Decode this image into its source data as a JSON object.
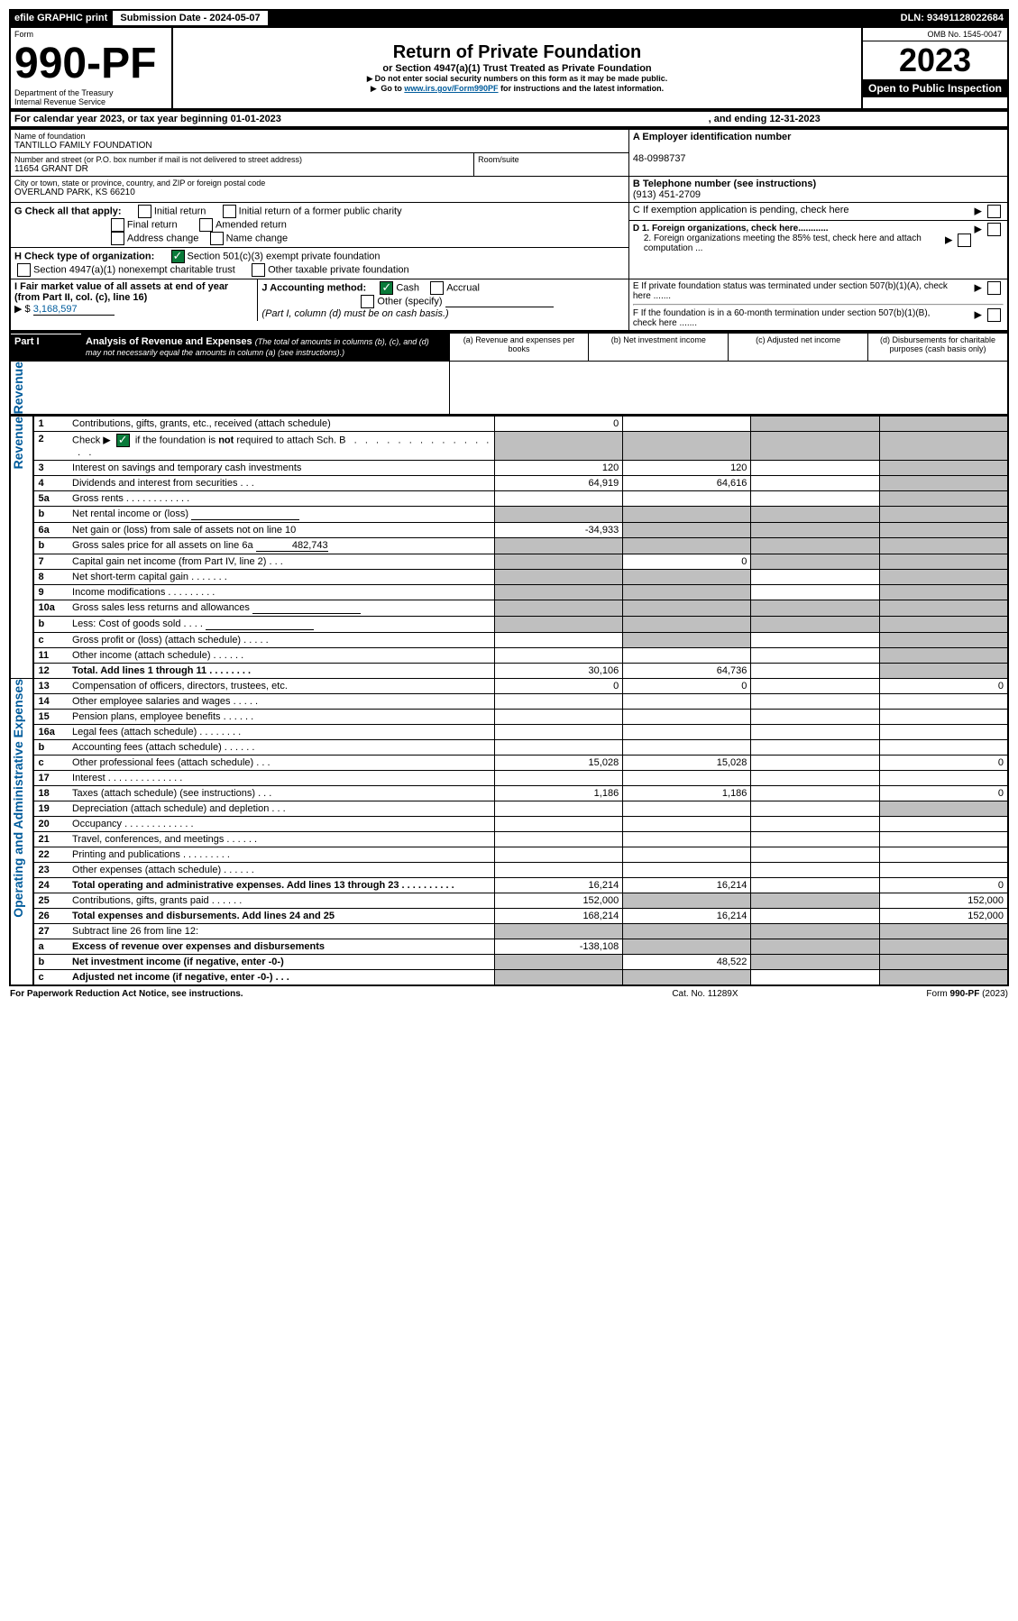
{
  "topbar": {
    "efile": "efile GRAPHIC print",
    "submission_label": "Submission Date - 2024-05-07",
    "dln": "DLN: 93491128022684"
  },
  "header": {
    "form_label": "Form",
    "form_no": "990-PF",
    "dept": "Department of the Treasury",
    "irs": "Internal Revenue Service",
    "title": "Return of Private Foundation",
    "subtitle": "or Section 4947(a)(1) Trust Treated as Private Foundation",
    "note1": "Do not enter social security numbers on this form as it may be made public.",
    "note2_prefix": "Go to ",
    "note2_link": "www.irs.gov/Form990PF",
    "note2_suffix": " for instructions and the latest information.",
    "omb": "OMB No. 1545-0047",
    "year": "2023",
    "open": "Open to Public Inspection"
  },
  "cal": {
    "line": "For calendar year 2023, or tax year beginning 01-01-2023",
    "ending": ", and ending 12-31-2023"
  },
  "id_block": {
    "name_lbl": "Name of foundation",
    "name": "TANTILLO FAMILY FOUNDATION",
    "addr_lbl": "Number and street (or P.O. box number if mail is not delivered to street address)",
    "addr": "11654 GRANT DR",
    "room_lbl": "Room/suite",
    "city_lbl": "City or town, state or province, country, and ZIP or foreign postal code",
    "city": "OVERLAND PARK, KS  66210",
    "a_lbl": "A Employer identification number",
    "a_val": "48-0998737",
    "b_lbl": "B Telephone number (see instructions)",
    "b_val": "(913) 451-2709",
    "c_lbl": "C If exemption application is pending, check here",
    "d1_lbl": "D 1. Foreign organizations, check here............",
    "d2_lbl": "2. Foreign organizations meeting the 85% test, check here and attach computation ...",
    "e_lbl": "E  If private foundation status was terminated under section 507(b)(1)(A), check here .......",
    "f_lbl": "F  If the foundation is in a 60-month termination under section 507(b)(1)(B), check here .......",
    "g_lbl": "G Check all that apply:",
    "g_opts": [
      "Initial return",
      "Final return",
      "Address change",
      "Initial return of a former public charity",
      "Amended return",
      "Name change"
    ],
    "h_lbl": "H Check type of organization:",
    "h_opt1": "Section 501(c)(3) exempt private foundation",
    "h_opt2": "Section 4947(a)(1) nonexempt charitable trust",
    "h_opt3": "Other taxable private foundation",
    "i_lbl": "I Fair market value of all assets at end of year (from Part II, col. (c), line 16)",
    "i_val": "3,168,597",
    "j_lbl": "J Accounting method:",
    "j_cash": "Cash",
    "j_accrual": "Accrual",
    "j_other": "Other (specify)",
    "j_note": "(Part I, column (d) must be on cash basis.)"
  },
  "part1": {
    "label": "Part I",
    "title": "Analysis of Revenue and Expenses",
    "title_note": " (The total of amounts in columns (b), (c), and (d) may not necessarily equal the amounts in column (a) (see instructions).)",
    "col_a": "(a)   Revenue and expenses per books",
    "col_b": "(b)   Net investment income",
    "col_c": "(c)   Adjusted net income",
    "col_d": "(d)   Disbursements for charitable purposes (cash basis only)",
    "revenue_label": "Revenue",
    "opex_label": "Operating and Administrative Expenses"
  },
  "rows": [
    {
      "n": "1",
      "desc": "Contributions, gifts, grants, etc., received (attach schedule)",
      "a": "0",
      "b": "",
      "c_shade": true,
      "d_shade": true
    },
    {
      "n": "2",
      "desc": "Check ▶ ☑ if the foundation is not required to attach Sch. B   .   .   .   .   .   .   .   .   .   .   .   .   .   .   .   .",
      "a_shade": true,
      "b_shade": true,
      "c_shade": true,
      "d_shade": true,
      "checked": true,
      "bold_not": true
    },
    {
      "n": "3",
      "desc": "Interest on savings and temporary cash investments",
      "a": "120",
      "b": "120",
      "c": "",
      "d_shade": true
    },
    {
      "n": "4",
      "desc": "Dividends and interest from securities   .   .   .",
      "a": "64,919",
      "b": "64,616",
      "c": "",
      "d_shade": true
    },
    {
      "n": "5a",
      "desc": "Gross rents   .   .   .   .   .   .   .   .   .   .   .   .",
      "a": "",
      "b": "",
      "c": "",
      "d_shade": true
    },
    {
      "n": "b",
      "desc": "Net rental income or (loss)  ",
      "a_shade": true,
      "b_shade": true,
      "c_shade": true,
      "d_shade": true,
      "inline_blank": true
    },
    {
      "n": "6a",
      "desc": "Net gain or (loss) from sale of assets not on line 10",
      "a": "-34,933",
      "b_shade": true,
      "c_shade": true,
      "d_shade": true
    },
    {
      "n": "b",
      "desc": "Gross sales price for all assets on line 6a",
      "inline_val": "482,743",
      "a_shade": true,
      "b_shade": true,
      "c_shade": true,
      "d_shade": true
    },
    {
      "n": "7",
      "desc": "Capital gain net income (from Part IV, line 2)   .   .   .",
      "a_shade": true,
      "b": "0",
      "c_shade": true,
      "d_shade": true
    },
    {
      "n": "8",
      "desc": "Net short-term capital gain   .   .   .   .   .   .   .",
      "a_shade": true,
      "b_shade": true,
      "c": "",
      "d_shade": true
    },
    {
      "n": "9",
      "desc": "Income modifications   .   .   .   .   .   .   .   .   .",
      "a_shade": true,
      "b_shade": true,
      "c": "",
      "d_shade": true
    },
    {
      "n": "10a",
      "desc": "Gross sales less returns and allowances",
      "a_shade": true,
      "b_shade": true,
      "c_shade": true,
      "d_shade": true,
      "inline_blank": true
    },
    {
      "n": "b",
      "desc": "Less: Cost of goods sold   .   .   .   .",
      "a_shade": true,
      "b_shade": true,
      "c_shade": true,
      "d_shade": true,
      "inline_blank": true
    },
    {
      "n": "c",
      "desc": "Gross profit or (loss) (attach schedule)   .   .   .   .   .",
      "a": "",
      "b_shade": true,
      "c": "",
      "d_shade": true
    },
    {
      "n": "11",
      "desc": "Other income (attach schedule)   .   .   .   .   .   .",
      "a": "",
      "b": "",
      "c": "",
      "d_shade": true
    },
    {
      "n": "12",
      "desc": "Total. Add lines 1 through 11   .   .   .   .   .   .   .   .",
      "a": "30,106",
      "b": "64,736",
      "c": "",
      "d_shade": true,
      "bold": true
    }
  ],
  "oprows": [
    {
      "n": "13",
      "desc": "Compensation of officers, directors, trustees, etc.",
      "a": "0",
      "b": "0",
      "c": "",
      "d": "0"
    },
    {
      "n": "14",
      "desc": "Other employee salaries and wages   .   .   .   .   .",
      "a": "",
      "b": "",
      "c": "",
      "d": ""
    },
    {
      "n": "15",
      "desc": "Pension plans, employee benefits   .   .   .   .   .   .",
      "a": "",
      "b": "",
      "c": "",
      "d": ""
    },
    {
      "n": "16a",
      "desc": "Legal fees (attach schedule)   .   .   .   .   .   .   .   .",
      "a": "",
      "b": "",
      "c": "",
      "d": ""
    },
    {
      "n": "b",
      "desc": "Accounting fees (attach schedule)   .   .   .   .   .   .",
      "a": "",
      "b": "",
      "c": "",
      "d": ""
    },
    {
      "n": "c",
      "desc": "Other professional fees (attach schedule)   .   .   .",
      "a": "15,028",
      "b": "15,028",
      "c": "",
      "d": "0"
    },
    {
      "n": "17",
      "desc": "Interest   .   .   .   .   .   .   .   .   .   .   .   .   .   .",
      "a": "",
      "b": "",
      "c": "",
      "d": ""
    },
    {
      "n": "18",
      "desc": "Taxes (attach schedule) (see instructions)   .   .   .",
      "a": "1,186",
      "b": "1,186",
      "c": "",
      "d": "0"
    },
    {
      "n": "19",
      "desc": "Depreciation (attach schedule) and depletion   .   .   .",
      "a": "",
      "b": "",
      "c": "",
      "d_shade": true
    },
    {
      "n": "20",
      "desc": "Occupancy   .   .   .   .   .   .   .   .   .   .   .   .   .",
      "a": "",
      "b": "",
      "c": "",
      "d": ""
    },
    {
      "n": "21",
      "desc": "Travel, conferences, and meetings   .   .   .   .   .   .",
      "a": "",
      "b": "",
      "c": "",
      "d": ""
    },
    {
      "n": "22",
      "desc": "Printing and publications   .   .   .   .   .   .   .   .   .",
      "a": "",
      "b": "",
      "c": "",
      "d": ""
    },
    {
      "n": "23",
      "desc": "Other expenses (attach schedule)   .   .   .   .   .   .",
      "a": "",
      "b": "",
      "c": "",
      "d": ""
    },
    {
      "n": "24",
      "desc": "Total operating and administrative expenses. Add lines 13 through 23   .   .   .   .   .   .   .   .   .   .",
      "a": "16,214",
      "b": "16,214",
      "c": "",
      "d": "0",
      "bold": true
    },
    {
      "n": "25",
      "desc": "Contributions, gifts, grants paid   .   .   .   .   .   .",
      "a": "152,000",
      "b_shade": true,
      "c_shade": true,
      "d": "152,000"
    },
    {
      "n": "26",
      "desc": "Total expenses and disbursements. Add lines 24 and 25",
      "a": "168,214",
      "b": "16,214",
      "c": "",
      "d": "152,000",
      "bold": true
    },
    {
      "n": "27",
      "desc": "Subtract line 26 from line 12:",
      "a_shade": true,
      "b_shade": true,
      "c_shade": true,
      "d_shade": true
    },
    {
      "n": "a",
      "desc": "Excess of revenue over expenses and disbursements",
      "a": "-138,108",
      "b_shade": true,
      "c_shade": true,
      "d_shade": true,
      "bold": true
    },
    {
      "n": "b",
      "desc": "Net investment income (if negative, enter -0-)",
      "a_shade": true,
      "b": "48,522",
      "c_shade": true,
      "d_shade": true,
      "bold": true
    },
    {
      "n": "c",
      "desc": "Adjusted net income (if negative, enter -0-)   .   .   .",
      "a_shade": true,
      "b_shade": true,
      "c": "",
      "d_shade": true,
      "bold": true
    }
  ],
  "footer": {
    "left": "For Paperwork Reduction Act Notice, see instructions.",
    "mid": "Cat. No. 11289X",
    "right": "Form 990-PF (2023)"
  }
}
